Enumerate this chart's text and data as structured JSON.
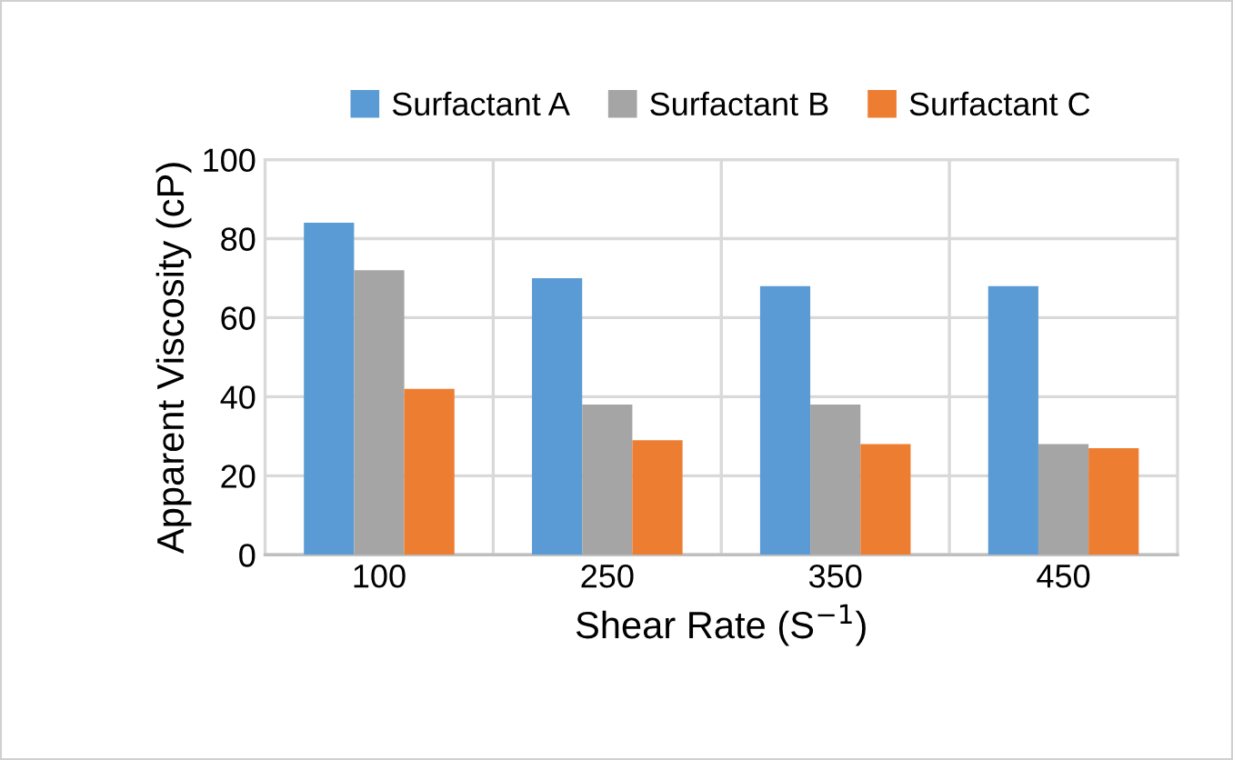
{
  "chart_data": {
    "type": "bar",
    "xlabel": "Shear Rate (S$^{−1}$)",
    "ylabel": "Apparent Viscosity (cP)",
    "categories": [
      "100",
      "250",
      "350",
      "450"
    ],
    "series": [
      {
        "name": "Surfactant A",
        "color": "#5b9bd5",
        "values": [
          84,
          70,
          68,
          68
        ]
      },
      {
        "name": "Surfactant B",
        "color": "#a5a5a5",
        "values": [
          72,
          38,
          38,
          28
        ]
      },
      {
        "name": "Surfactant C",
        "color": "#ed7d31",
        "values": [
          42,
          29,
          28,
          27
        ]
      }
    ],
    "ylim": [
      0,
      100
    ],
    "yticks": [
      0,
      20,
      40,
      60,
      80,
      100
    ],
    "grid": true,
    "legend": "top"
  }
}
